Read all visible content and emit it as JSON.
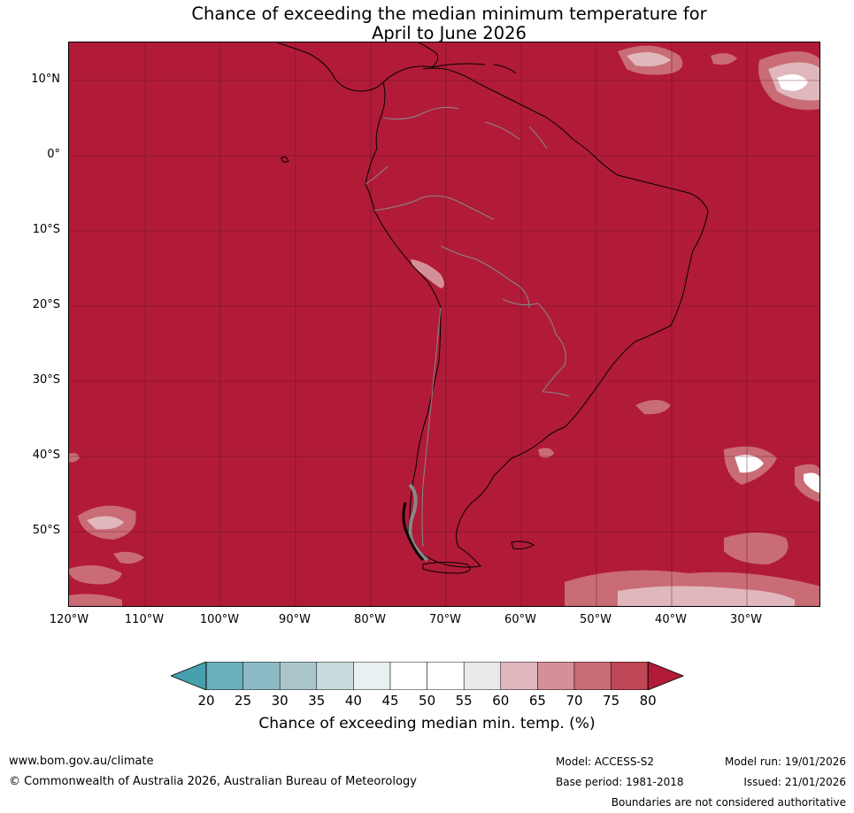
{
  "title": {
    "line1": "Chance of exceeding the median minimum temperature for",
    "line2": "April to June 2026"
  },
  "map": {
    "region": "South America",
    "dominant_category": "80",
    "ocean_land_fill_color": "#b11b38",
    "lat_labels": [
      "10°N",
      "0°",
      "10°S",
      "20°S",
      "30°S",
      "40°S",
      "50°S"
    ],
    "lon_labels": [
      "120°W",
      "110°W",
      "100°W",
      "90°W",
      "80°W",
      "70°W",
      "60°W",
      "50°W",
      "40°W",
      "30°W"
    ]
  },
  "colorbar": {
    "ticks": [
      "20",
      "25",
      "30",
      "35",
      "40",
      "45",
      "50",
      "55",
      "60",
      "65",
      "70",
      "75",
      "80"
    ],
    "colors": [
      "#47a0ad",
      "#6aaebd",
      "#8cbac4",
      "#aac6cb",
      "#c9d9dc",
      "#e8f0f1",
      "#ffffff",
      "#ffffff",
      "#ebe9ea",
      "#e0b7bd",
      "#d48f98",
      "#c96c76",
      "#be4655"
    ],
    "under_color": "#47a0ad",
    "over_color": "#b11b38",
    "label": "Chance of exceeding median min. temp. (%)"
  },
  "footer": {
    "website": "www.bom.gov.au/climate",
    "copyright": "© Commonwealth of Australia 2026, Australian Bureau of Meteorology",
    "model": "Model: ACCESS-S2",
    "base_period": "Base period: 1981-2018",
    "model_run": "Model run: 19/01/2026",
    "issued": "Issued: 21/01/2026",
    "disclaimer": "Boundaries are not considered authoritative"
  }
}
